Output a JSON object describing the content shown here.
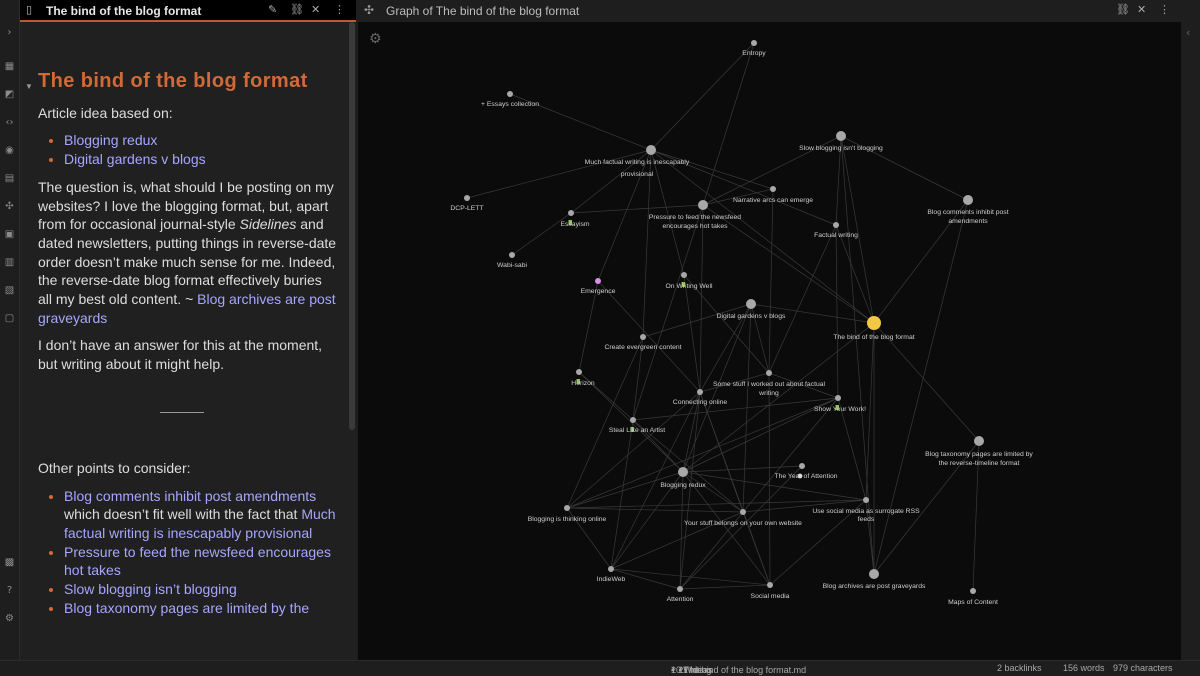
{
  "left_tab": {
    "title": "The bind of the blog format"
  },
  "graph_tab": {
    "title": "Graph of The bind of the blog format"
  },
  "note": {
    "title": "The bind of the blog format",
    "intro": "Article idea based on:",
    "based_on": [
      "Blogging redux",
      "Digital gardens v blogs"
    ],
    "p1_a": "The question is, what should I be posting on my websites? I love the blogging format, but, apart from for occasional journal-style ",
    "p1_em": "Sidelines",
    "p1_b": " and dated newsletters, putting things in reverse-date order doesn’t make much sense for me. Indeed, the reverse-date blog format effectively buries all my best old content. ~ ",
    "p1_link": "Blog archives are post graveyards",
    "p2": "I don’t have an answer for this at the moment, but writing about it might help.",
    "other_heading": "Other points to consider:",
    "other_points": {
      "a_link": "Blog comments inhibit post amendments",
      "a_text": " which doesn’t fit well with the fact that ",
      "a_link2": "Much factual writing is inescapably provisional",
      "b_link": "Pressure to feed the newsfeed encourages hot takes",
      "c_link": "Slow blogging isn’t blogging",
      "d_link": "Blog taxonomy pages are limited by the"
    }
  },
  "graph": {
    "nodes": [
      {
        "id": "entropy",
        "label": "Entropy",
        "type": "note"
      },
      {
        "id": "essays",
        "label": "+ Essays collection",
        "type": "note"
      },
      {
        "id": "much",
        "label": "Much factual writing is inescapably provisional",
        "type": "note"
      },
      {
        "id": "slow",
        "label": "Slow blogging isn't blogging",
        "type": "note"
      },
      {
        "id": "dcp",
        "label": "DCP-LETT",
        "type": "note"
      },
      {
        "id": "narr",
        "label": "Narrative arcs can emerge",
        "type": "note"
      },
      {
        "id": "essayism",
        "label": "Essayism",
        "type": "tag"
      },
      {
        "id": "pressure",
        "label": "Pressure to feed the newsfeed encourages hot takes",
        "type": "note"
      },
      {
        "id": "comments",
        "label": "Blog comments inhibit post amendments",
        "type": "note"
      },
      {
        "id": "factual",
        "label": "Factual writing",
        "type": "note"
      },
      {
        "id": "wabi",
        "label": "Wabi-sabi",
        "type": "note"
      },
      {
        "id": "emergence",
        "label": "Emergence",
        "type": "attachment"
      },
      {
        "id": "onwriting",
        "label": "On Writing Well",
        "type": "tag"
      },
      {
        "id": "digital",
        "label": "Digital gardens v blogs",
        "type": "note"
      },
      {
        "id": "bind",
        "label": "The bind of the blog format",
        "type": "current"
      },
      {
        "id": "evergreen",
        "label": "Create evergreen content",
        "type": "note"
      },
      {
        "id": "somestuff",
        "label": "Some stuff I worked out about factual writing",
        "type": "note"
      },
      {
        "id": "horizon",
        "label": "Horizon",
        "type": "tag"
      },
      {
        "id": "connecting",
        "label": "Connecting online",
        "type": "note"
      },
      {
        "id": "showwork",
        "label": "Show Your Work!",
        "type": "tag"
      },
      {
        "id": "steal",
        "label": "Steal Like an Artist",
        "type": "tag"
      },
      {
        "id": "taxonomy",
        "label": "Blog taxonomy pages are limited by the reverse-timeline format",
        "type": "note"
      },
      {
        "id": "yearatt",
        "label": "The Year of Attention",
        "type": "chat"
      },
      {
        "id": "redux",
        "label": "Blogging redux",
        "type": "note"
      },
      {
        "id": "social_rss",
        "label": "Use social media as surrogate RSS feeds",
        "type": "note"
      },
      {
        "id": "thinking",
        "label": "Blogging is thinking online",
        "type": "note"
      },
      {
        "id": "yourstuff",
        "label": "Your stuff belongs on your own website",
        "type": "note"
      },
      {
        "id": "indieweb",
        "label": "IndieWeb",
        "type": "note"
      },
      {
        "id": "archives",
        "label": "Blog archives are post graveyards",
        "type": "note"
      },
      {
        "id": "attention",
        "label": "Attention",
        "type": "note"
      },
      {
        "id": "socialmedia",
        "label": "Social media",
        "type": "note"
      },
      {
        "id": "maps",
        "label": "Maps of Content",
        "type": "note"
      }
    ],
    "colors": {
      "node": "#a8a8a8",
      "current": "#f2c744",
      "attachment": "#d98ee8",
      "tag": "#8dbf5a",
      "edge": "#3a3a3a"
    }
  },
  "status": {
    "crumb1": "10 Writing",
    "crumb2": "11 Ideas",
    "crumb3": "The bind of the blog format.md",
    "backlinks": "2 backlinks",
    "words": "156 words",
    "chars": "979 characters"
  }
}
